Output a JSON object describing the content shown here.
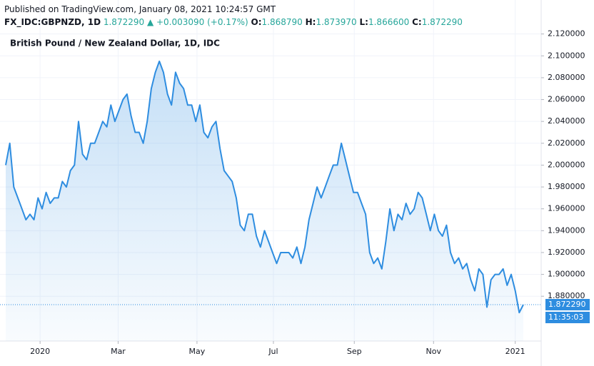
{
  "header": {
    "published": "Published on TradingView.com, January 08, 2021 10:24:57 GMT",
    "symbol": "FX_IDC:GBPNZD, 1D",
    "price": "1.872290",
    "change": "▲ +0.003090 (+0.17%)",
    "o_label": "O:",
    "o": "1.868790",
    "h_label": "H:",
    "h": "1.873970",
    "l_label": "L:",
    "l": "1.866600",
    "c_label": "C:",
    "c": "1.872290"
  },
  "chart_data": {
    "type": "line",
    "title": "British Pound / New Zealand Dollar, 1D, IDC",
    "color": "#2e8de0",
    "values": [
      2.0,
      2.02,
      1.98,
      1.97,
      1.96,
      1.95,
      1.955,
      1.95,
      1.97,
      1.96,
      1.975,
      1.965,
      1.97,
      1.97,
      1.985,
      1.98,
      1.995,
      2.0,
      2.04,
      2.01,
      2.005,
      2.02,
      2.02,
      2.03,
      2.04,
      2.035,
      2.055,
      2.04,
      2.05,
      2.06,
      2.065,
      2.045,
      2.03,
      2.03,
      2.02,
      2.04,
      2.07,
      2.085,
      2.095,
      2.085,
      2.065,
      2.055,
      2.085,
      2.075,
      2.07,
      2.055,
      2.055,
      2.04,
      2.055,
      2.03,
      2.025,
      2.035,
      2.04,
      2.015,
      1.995,
      1.99,
      1.985,
      1.97,
      1.945,
      1.94,
      1.955,
      1.955,
      1.935,
      1.925,
      1.94,
      1.93,
      1.92,
      1.91,
      1.92,
      1.92,
      1.92,
      1.915,
      1.925,
      1.91,
      1.925,
      1.95,
      1.965,
      1.98,
      1.97,
      1.98,
      1.99,
      2.0,
      2.0,
      2.02,
      2.005,
      1.99,
      1.975,
      1.975,
      1.965,
      1.955,
      1.92,
      1.91,
      1.915,
      1.905,
      1.93,
      1.96,
      1.94,
      1.955,
      1.95,
      1.965,
      1.955,
      1.96,
      1.975,
      1.97,
      1.955,
      1.94,
      1.955,
      1.94,
      1.935,
      1.945,
      1.92,
      1.91,
      1.915,
      1.905,
      1.91,
      1.895,
      1.885,
      1.905,
      1.9,
      1.87,
      1.895,
      1.9,
      1.9,
      1.905,
      1.89,
      1.9,
      1.885,
      1.865,
      1.87229
    ],
    "value_labels": {
      "128": "1.872290"
    },
    "countdown": "11:35:03",
    "xlim": [
      0,
      128
    ],
    "xticks": [
      {
        "value": 8.5,
        "label": "2020"
      },
      {
        "value": 27.8,
        "label": "Mar"
      },
      {
        "value": 47.3,
        "label": "May"
      },
      {
        "value": 66.2,
        "label": "Jul"
      },
      {
        "value": 86.2,
        "label": "Sep"
      },
      {
        "value": 105.8,
        "label": "Nov"
      },
      {
        "value": 126,
        "label": "2021"
      }
    ],
    "ylim": [
      1.839,
      2.125
    ],
    "yticks": [
      {
        "value": 1.88,
        "label": "1.880000"
      },
      {
        "value": 1.9,
        "label": "1.900000"
      },
      {
        "value": 1.92,
        "label": "1.920000"
      },
      {
        "value": 1.94,
        "label": "1.940000"
      },
      {
        "value": 1.96,
        "label": "1.960000"
      },
      {
        "value": 1.98,
        "label": "1.980000"
      },
      {
        "value": 2.0,
        "label": "2.000000"
      },
      {
        "value": 2.02,
        "label": "2.020000"
      },
      {
        "value": 2.04,
        "label": "2.040000"
      },
      {
        "value": 2.06,
        "label": "2.060000"
      },
      {
        "value": 2.08,
        "label": "2.080000"
      },
      {
        "value": 2.1,
        "label": "2.100000"
      },
      {
        "value": 2.12,
        "label": "2.120000"
      }
    ],
    "grid": true
  }
}
